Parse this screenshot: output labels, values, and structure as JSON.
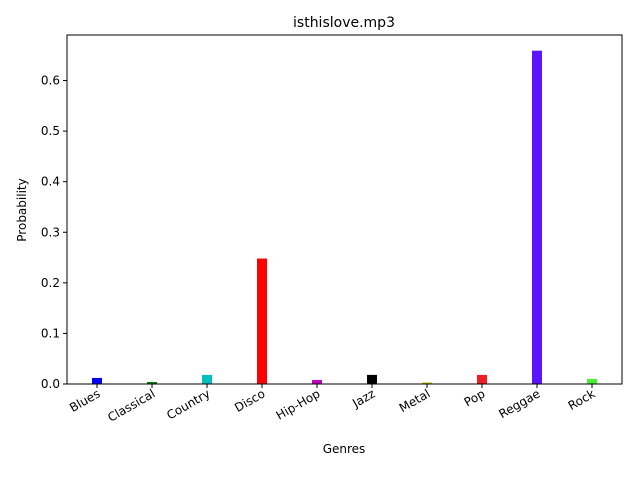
{
  "chart_data": {
    "type": "bar",
    "title": "isthislove.mp3",
    "xlabel": "Genres",
    "ylabel": "Probability",
    "categories": [
      "Blues",
      "Classical",
      "Country",
      "Disco",
      "Hip-Hop",
      "Jazz",
      "Metal",
      "Pop",
      "Reggae",
      "Rock"
    ],
    "values": [
      0.012,
      0.004,
      0.018,
      0.248,
      0.008,
      0.018,
      0.003,
      0.018,
      0.659,
      0.01
    ],
    "colors": [
      "#0000ff",
      "#008000",
      "#00bfbf",
      "#ff0000",
      "#bf00bf",
      "#000000",
      "#bfbf00",
      "#ee1c25",
      "#5b14ff",
      "#4bef33"
    ],
    "ylim": [
      0,
      0.69
    ],
    "yticks": [
      0.0,
      0.1,
      0.2,
      0.3,
      0.4,
      0.5,
      0.6
    ],
    "ytick_labels": [
      "0.0",
      "0.1",
      "0.2",
      "0.3",
      "0.4",
      "0.5",
      "0.6"
    ],
    "grid": false,
    "legend": "none"
  }
}
